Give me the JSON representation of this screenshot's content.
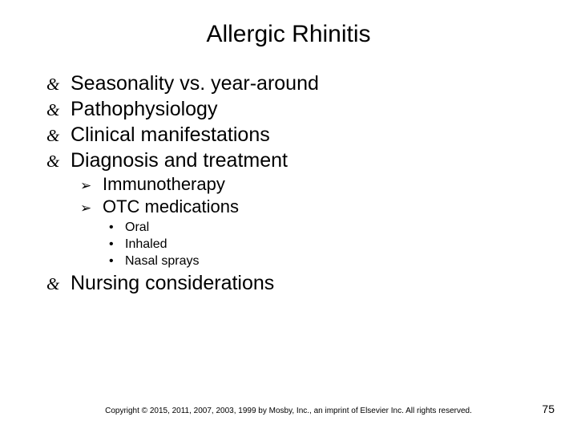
{
  "title": "Allergic Rhinitis",
  "bullets": {
    "l1": [
      "Seasonality vs. year-around",
      "Pathophysiology",
      "Clinical manifestations",
      "Diagnosis and treatment"
    ],
    "l2": [
      "Immunotherapy",
      "OTC medications"
    ],
    "l3": [
      "Oral",
      "Inhaled",
      "Nasal sprays"
    ],
    "l1_last": "Nursing considerations"
  },
  "glyphs": {
    "l1": "&",
    "l2": "➢",
    "l3": "•"
  },
  "footer": {
    "copyright": "Copyright © 2015, 2011, 2007, 2003, 1999 by Mosby, Inc., an imprint of Elsevier Inc. All rights reserved.",
    "page": "75"
  },
  "colors": {
    "background": "#ffffff",
    "text": "#000000"
  },
  "typography": {
    "title_fontsize": 30,
    "l1_fontsize": 25,
    "l2_fontsize": 22,
    "l3_fontsize": 16,
    "footer_fontsize": 10,
    "pagenum_fontsize": 14
  }
}
